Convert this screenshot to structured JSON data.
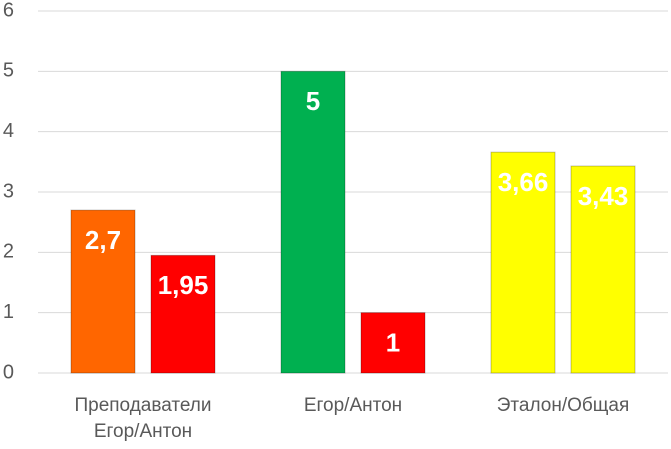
{
  "chart_data": {
    "type": "bar",
    "categories": [
      "Преподаватели\nЕгор/Антон",
      "Егор/Антон",
      "Эталон/Общая"
    ],
    "series": [
      {
        "values": [
          2.7,
          5,
          3.66
        ],
        "value_labels": [
          "2,7",
          "5",
          "3,66"
        ],
        "colors": [
          "#ff6600",
          "#00b050",
          "#ffff00"
        ]
      },
      {
        "values": [
          1.95,
          1,
          3.43
        ],
        "value_labels": [
          "1,95",
          "1",
          "3,43"
        ],
        "colors": [
          "#ff0000",
          "#ff0000",
          "#ffff00"
        ]
      }
    ],
    "ylim": [
      0,
      6
    ],
    "yticks": [
      0,
      1,
      2,
      3,
      4,
      5,
      6
    ],
    "grid": true
  }
}
